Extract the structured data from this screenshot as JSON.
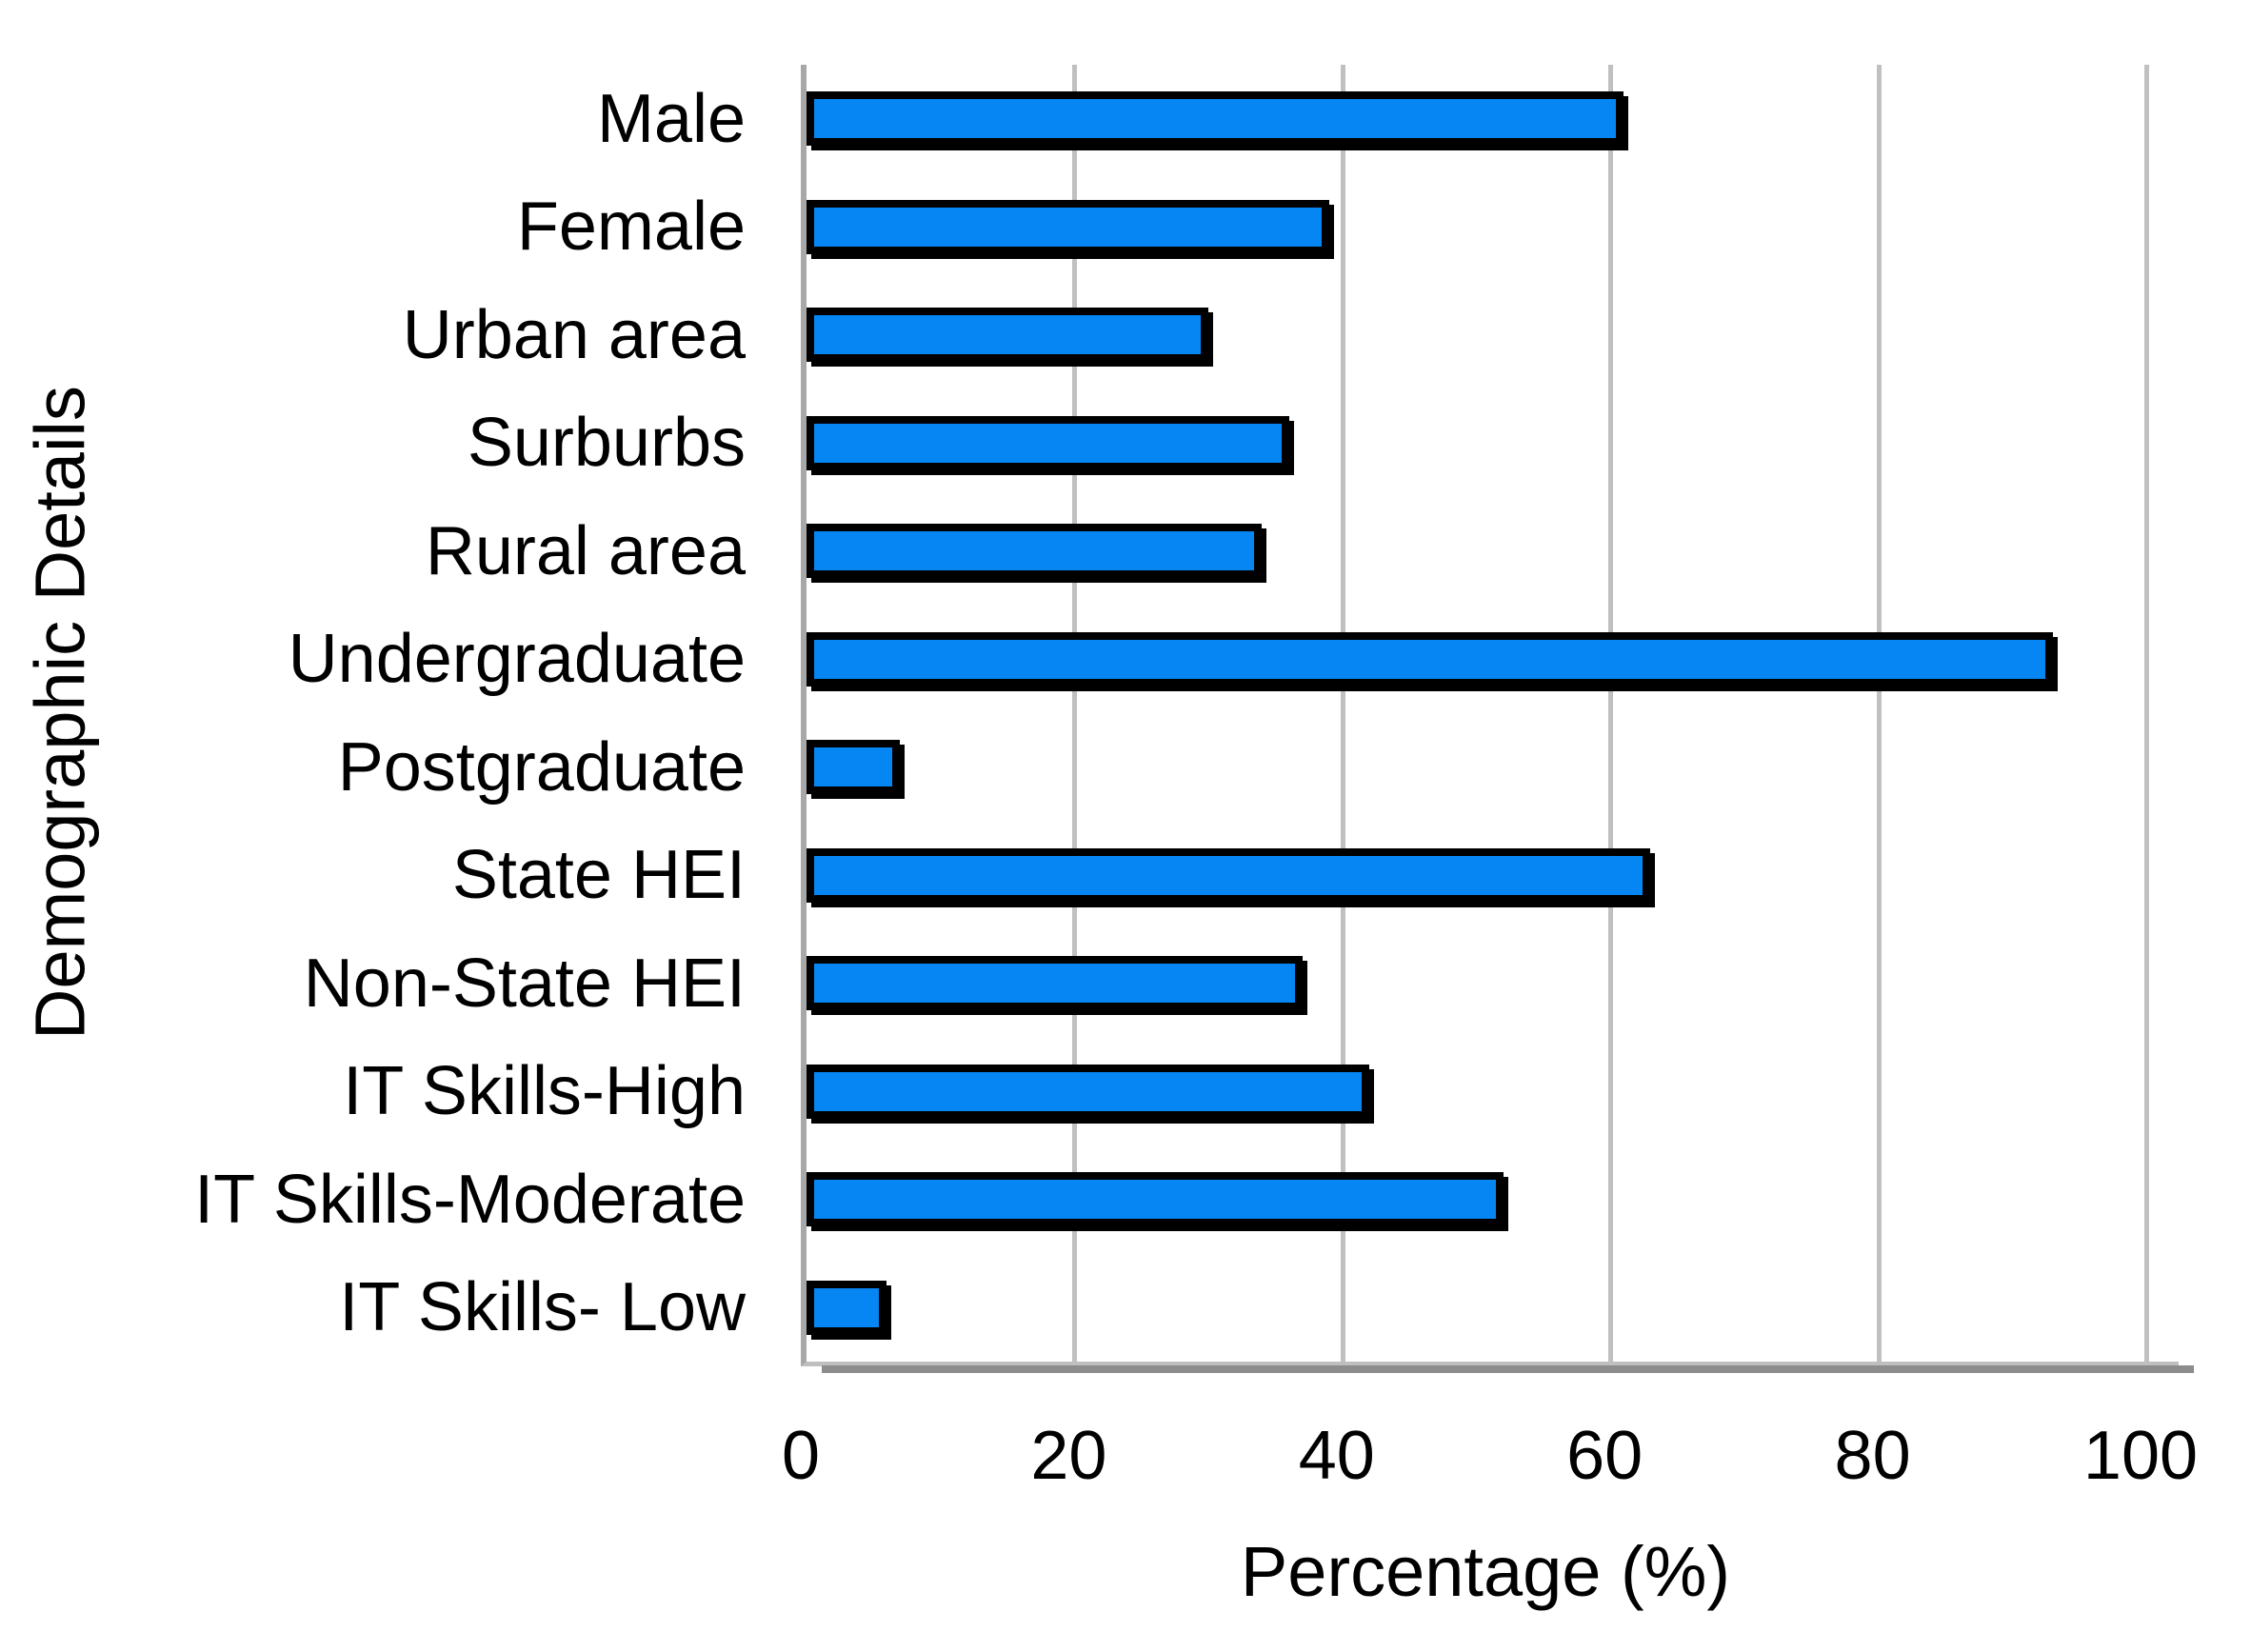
{
  "chart_data": {
    "type": "bar",
    "orientation": "horizontal",
    "categories": [
      "Male",
      "Female",
      "Urban area",
      "Surburbs",
      "Rural area",
      "Undergraduate",
      "Postgraduate",
      "State HEI",
      "Non-State HEI",
      "IT Skills-High",
      "IT Skills-Moderate",
      "IT Skills- Low"
    ],
    "values": [
      61,
      39,
      30,
      36,
      34,
      93,
      7,
      63,
      37,
      42,
      52,
      6
    ],
    "title": "",
    "xlabel": "Percentage (%)",
    "ylabel": "Demographic Details",
    "xlim": [
      0,
      100
    ],
    "xticks": [
      0,
      20,
      40,
      60,
      80,
      100
    ],
    "grid": "vertical",
    "legend": "none",
    "colors": {
      "bar_fill": "#0586f2",
      "bar_border": "#000000",
      "gridline": "#c0c0c0",
      "axis_line": "#a8a8a8",
      "plot_shadow": "#8c8c8c",
      "text": "#000000"
    }
  }
}
